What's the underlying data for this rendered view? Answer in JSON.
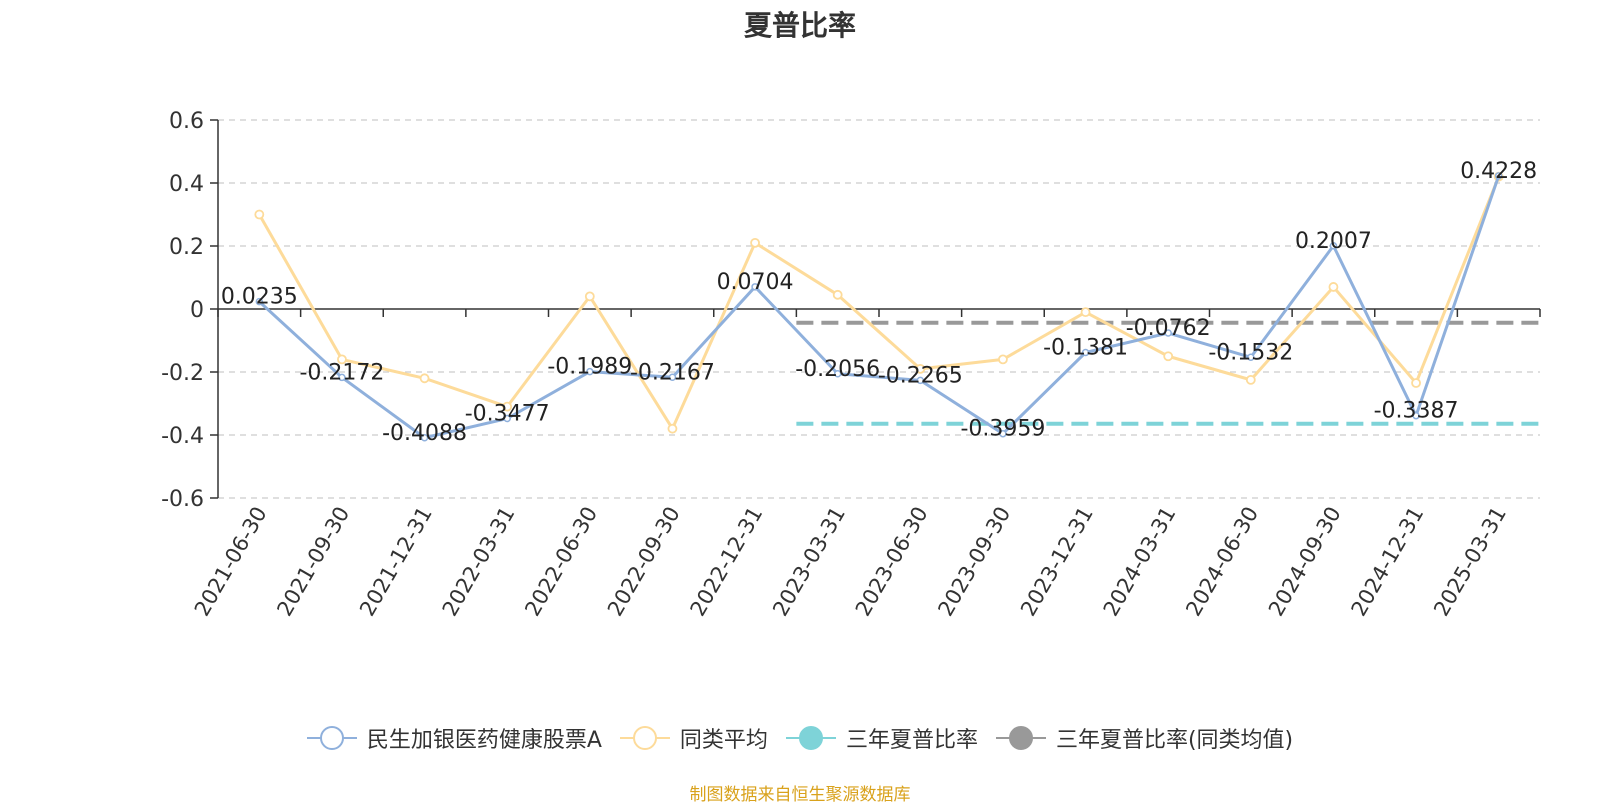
{
  "chart_data": {
    "type": "line",
    "title": "夏普比率",
    "categories": [
      "2021-06-30",
      "2021-09-30",
      "2021-12-31",
      "2022-03-31",
      "2022-06-30",
      "2022-09-30",
      "2022-12-31",
      "2023-03-31",
      "2023-06-30",
      "2023-09-30",
      "2023-12-31",
      "2024-03-31",
      "2024-06-30",
      "2024-09-30",
      "2024-12-31",
      "2025-03-31"
    ],
    "ylim": [
      -0.6,
      0.6
    ],
    "yticks": [
      0.6,
      0.4,
      0.2,
      0,
      -0.2,
      -0.4,
      -0.6
    ],
    "ytick_labels": [
      "0.6",
      "0.4",
      "0.2",
      "0",
      "-0.2",
      "-0.4",
      "-0.6"
    ],
    "grid": true,
    "legend_position": "bottom",
    "series": [
      {
        "name": "民生加银医药健康股票A",
        "color": "#8fb0dc",
        "values": [
          0.0235,
          -0.2172,
          -0.4088,
          -0.3477,
          -0.1989,
          -0.2167,
          0.0704,
          -0.2056,
          -0.2265,
          -0.3959,
          -0.1381,
          -0.0762,
          -0.1532,
          0.2007,
          -0.3387,
          0.4228
        ],
        "labels": [
          "0.0235",
          "-0.2172",
          "-0.4088",
          "-0.3477",
          "-0.1989",
          "-0.2167",
          "0.0704",
          "-0.2056",
          "-0.2265",
          "-0.3959",
          "-0.1381",
          "-0.0762",
          "-0.1532",
          "0.2007",
          "-0.3387",
          "0.4228"
        ]
      },
      {
        "name": "同类平均",
        "color": "#fddb9a",
        "values": [
          0.3,
          -0.16,
          -0.22,
          -0.31,
          0.04,
          -0.38,
          0.21,
          0.045,
          -0.19,
          -0.16,
          -0.01,
          -0.15,
          -0.225,
          0.07,
          -0.235,
          0.42
        ]
      },
      {
        "name": "三年夏普比率",
        "color": "#7ed3d8",
        "value": -0.3644,
        "from_index": 7,
        "to_index": 15
      },
      {
        "name": "三年夏普比率(同类均值)",
        "color": "#999999",
        "value": -0.0436,
        "from_index": 7,
        "to_index": 15
      }
    ]
  },
  "legend": {
    "items": [
      {
        "label": "民生加银医药健康股票A",
        "color": "#8fb0dc",
        "symbol": "hollow"
      },
      {
        "label": "同类平均",
        "color": "#fddb9a",
        "symbol": "hollow"
      },
      {
        "label": "三年夏普比率",
        "color": "#7ed3d8",
        "symbol": "filled"
      },
      {
        "label": "三年夏普比率(同类均值)",
        "color": "#999999",
        "symbol": "filled"
      }
    ]
  },
  "source_note": "制图数据来自恒生聚源数据库"
}
